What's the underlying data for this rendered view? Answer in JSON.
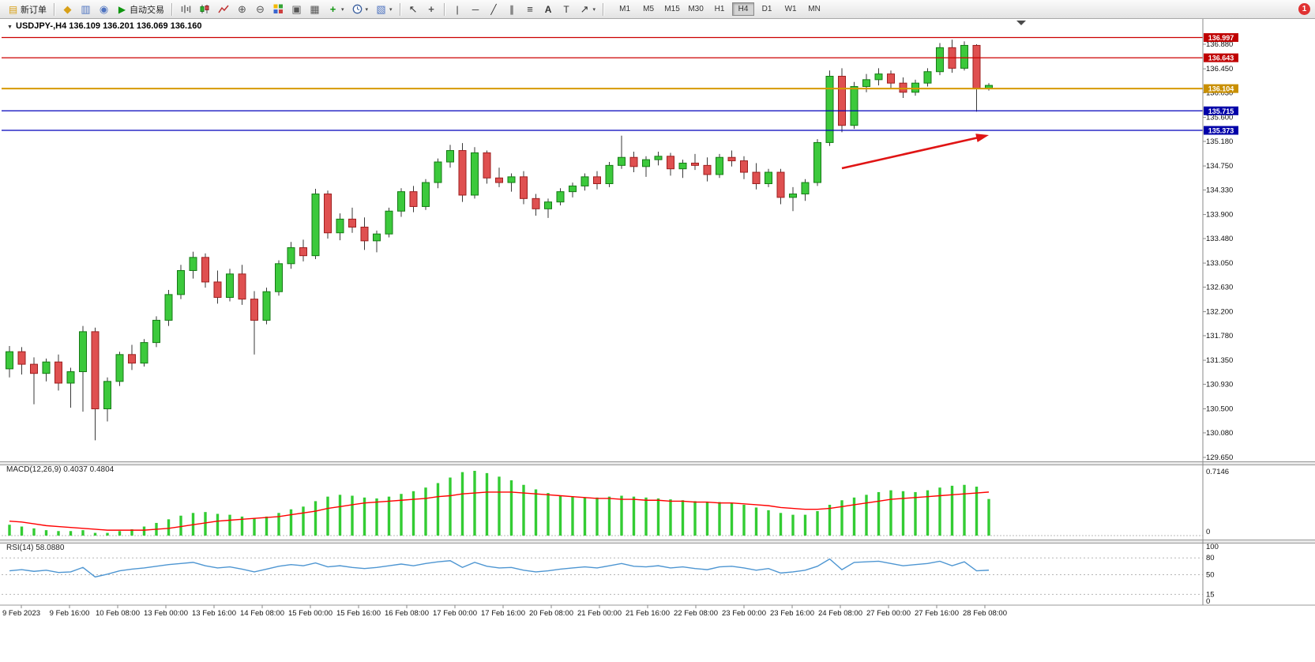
{
  "window": {
    "notification_badge": "1"
  },
  "toolbar": {
    "new_order": {
      "label": "新订单"
    },
    "autotrading": {
      "label": "自动交易"
    },
    "panel_icons": [
      {
        "name": "market-watch-icon",
        "glyph": "◆"
      },
      {
        "name": "data-window-icon",
        "glyph": "▥"
      },
      {
        "name": "navigator-icon",
        "glyph": "◉"
      }
    ],
    "tool_glyphs": {
      "new_order": "▤",
      "autotrading": "▶",
      "zoom_in": "⊕",
      "zoom_out": "⊖",
      "arrange": "▣",
      "cascade": "▦",
      "indicators": "+",
      "templates": "▧",
      "cursor": "↖",
      "crosshair": "+",
      "vline": "|",
      "hline": "─",
      "trendline": "╱",
      "channel": "∥",
      "fibonacci": "≡",
      "text": "A",
      "label": "T",
      "arrows": "↗",
      "caret": "▾"
    },
    "timeframes": [
      "M1",
      "M5",
      "M15",
      "M30",
      "H1",
      "H4",
      "D1",
      "W1",
      "MN"
    ],
    "active_timeframe": "H4"
  },
  "chart": {
    "title": "USDJPY-,H4  136.109 136.201 136.069 136.160",
    "macd_label": "MACD(12,26,9) 0.4037 0.4804",
    "rsi_label": "RSI(14) 58.0880",
    "dropdown_icon": "▼"
  },
  "colors": {
    "bull": "#3cc93c",
    "bull_edge": "#157a15",
    "bear": "#df5050",
    "bear_edge": "#9e1f1f",
    "wick": "#3a3a3a",
    "macd_bar": "#33cc33",
    "macd_signal": "#ff0000",
    "rsi_line": "#4e96d2",
    "line_red": "#cc0000",
    "line_blue": "#0000bb",
    "line_gold": "#d69a00",
    "tag_red": "#c00000",
    "tag_blue": "#0000a8",
    "tag_gold": "#c98f00",
    "arrow": "#e01414"
  },
  "chart_data": [
    {
      "type": "candlestick",
      "symbol": "USDJPY-",
      "timeframe": "H4",
      "title": "USDJPY-,H4",
      "current_ohlc": {
        "open": 136.109,
        "high": 136.201,
        "low": 136.069,
        "close": 136.16
      },
      "ylim": [
        129.45,
        137.1
      ],
      "grid": false,
      "y_tick_labels": [
        "136.880",
        "136.450",
        "136.030",
        "135.600",
        "135.180",
        "134.750",
        "134.330",
        "133.900",
        "133.480",
        "133.050",
        "132.630",
        "132.200",
        "131.780",
        "131.350",
        "130.930",
        "130.500",
        "130.080",
        "129.650"
      ],
      "y_tick_values": [
        136.88,
        136.45,
        136.03,
        135.6,
        135.18,
        134.75,
        134.33,
        133.9,
        133.48,
        133.05,
        132.63,
        132.2,
        131.78,
        131.35,
        130.93,
        130.5,
        130.08,
        129.65
      ],
      "x_ticks": [
        "9 Feb 2023",
        "9 Feb 16:00",
        "10 Feb 08:00",
        "13 Feb 00:00",
        "13 Feb 16:00",
        "14 Feb 08:00",
        "15 Feb 00:00",
        "15 Feb 16:00",
        "16 Feb 08:00",
        "17 Feb 00:00",
        "17 Feb 16:00",
        "20 Feb 08:00",
        "21 Feb 00:00",
        "21 Feb 16:00",
        "22 Feb 08:00",
        "23 Feb 00:00",
        "23 Feb 16:00",
        "24 Feb 08:00",
        "27 Feb 00:00",
        "27 Feb 16:00",
        "28 Feb 08:00"
      ],
      "hlines": [
        {
          "price": 136.997,
          "label": "136.997",
          "color": "red"
        },
        {
          "price": 136.643,
          "label": "136.643",
          "color": "red"
        },
        {
          "price": 136.104,
          "label": "136.104",
          "color": "gold"
        },
        {
          "price": 135.715,
          "label": "135.715",
          "color": "blue"
        },
        {
          "price": 135.373,
          "label": "135.373",
          "color": "blue"
        }
      ],
      "arrow": {
        "from_index": 68,
        "from_price": 134.71,
        "to_index": 79.6,
        "to_price": 135.27
      },
      "ohlc": [
        [
          131.2,
          131.6,
          131.05,
          131.5
        ],
        [
          131.5,
          131.58,
          131.1,
          131.28
        ],
        [
          131.28,
          131.4,
          130.58,
          131.12
        ],
        [
          131.12,
          131.38,
          130.98,
          131.32
        ],
        [
          131.32,
          131.45,
          130.82,
          130.95
        ],
        [
          130.95,
          131.22,
          130.52,
          131.15
        ],
        [
          131.15,
          131.95,
          130.45,
          131.85
        ],
        [
          131.85,
          131.92,
          129.95,
          130.5
        ],
        [
          130.5,
          131.05,
          130.28,
          130.98
        ],
        [
          130.98,
          131.5,
          130.9,
          131.45
        ],
        [
          131.45,
          131.62,
          131.18,
          131.3
        ],
        [
          131.3,
          131.72,
          131.24,
          131.66
        ],
        [
          131.66,
          132.12,
          131.58,
          132.05
        ],
        [
          132.05,
          132.58,
          131.95,
          132.5
        ],
        [
          132.5,
          133.02,
          132.42,
          132.92
        ],
        [
          132.92,
          133.25,
          132.78,
          133.15
        ],
        [
          133.15,
          133.22,
          132.62,
          132.72
        ],
        [
          132.72,
          132.92,
          132.34,
          132.45
        ],
        [
          132.45,
          132.95,
          132.38,
          132.86
        ],
        [
          132.86,
          133.02,
          132.32,
          132.42
        ],
        [
          132.42,
          132.56,
          131.45,
          132.05
        ],
        [
          132.05,
          132.62,
          131.98,
          132.55
        ],
        [
          132.55,
          133.1,
          132.48,
          133.04
        ],
        [
          133.04,
          133.42,
          132.95,
          133.32
        ],
        [
          133.32,
          133.46,
          133.08,
          133.18
        ],
        [
          133.18,
          134.35,
          133.12,
          134.26
        ],
        [
          134.26,
          134.32,
          133.48,
          133.58
        ],
        [
          133.58,
          133.92,
          133.45,
          133.82
        ],
        [
          133.82,
          134.02,
          133.58,
          133.68
        ],
        [
          133.68,
          133.85,
          133.28,
          133.44
        ],
        [
          133.44,
          133.62,
          133.24,
          133.56
        ],
        [
          133.56,
          134.02,
          133.5,
          133.96
        ],
        [
          133.96,
          134.36,
          133.86,
          134.3
        ],
        [
          134.3,
          134.4,
          133.94,
          134.04
        ],
        [
          134.04,
          134.52,
          133.98,
          134.46
        ],
        [
          134.46,
          134.88,
          134.36,
          134.82
        ],
        [
          134.82,
          135.12,
          134.72,
          135.02
        ],
        [
          135.02,
          135.15,
          134.12,
          134.24
        ],
        [
          134.24,
          135.08,
          134.18,
          134.98
        ],
        [
          134.98,
          135.02,
          134.44,
          134.54
        ],
        [
          134.54,
          134.72,
          134.38,
          134.46
        ],
        [
          134.46,
          134.62,
          134.3,
          134.56
        ],
        [
          134.56,
          134.66,
          134.08,
          134.18
        ],
        [
          134.18,
          134.26,
          133.88,
          134.0
        ],
        [
          134.0,
          134.18,
          133.84,
          134.12
        ],
        [
          134.12,
          134.36,
          134.06,
          134.3
        ],
        [
          134.3,
          134.46,
          134.2,
          134.4
        ],
        [
          134.4,
          134.62,
          134.32,
          134.56
        ],
        [
          134.56,
          134.66,
          134.34,
          134.44
        ],
        [
          134.44,
          134.82,
          134.38,
          134.76
        ],
        [
          134.76,
          135.28,
          134.7,
          134.9
        ],
        [
          134.9,
          135.0,
          134.64,
          134.74
        ],
        [
          134.74,
          134.92,
          134.56,
          134.86
        ],
        [
          134.86,
          135.0,
          134.76,
          134.92
        ],
        [
          134.92,
          134.98,
          134.58,
          134.7
        ],
        [
          134.7,
          134.86,
          134.54,
          134.8
        ],
        [
          134.8,
          134.96,
          134.68,
          134.76
        ],
        [
          134.76,
          134.9,
          134.48,
          134.6
        ],
        [
          134.6,
          134.96,
          134.54,
          134.9
        ],
        [
          134.9,
          135.02,
          134.74,
          134.84
        ],
        [
          134.84,
          134.92,
          134.52,
          134.64
        ],
        [
          134.64,
          134.8,
          134.34,
          134.44
        ],
        [
          134.44,
          134.7,
          134.38,
          134.64
        ],
        [
          134.64,
          134.7,
          134.08,
          134.2
        ],
        [
          134.2,
          134.38,
          133.96,
          134.26
        ],
        [
          134.26,
          134.52,
          134.14,
          134.46
        ],
        [
          134.46,
          135.22,
          134.4,
          135.16
        ],
        [
          135.16,
          136.42,
          135.1,
          136.32
        ],
        [
          136.32,
          136.46,
          135.34,
          135.46
        ],
        [
          135.46,
          136.22,
          135.4,
          136.14
        ],
        [
          136.14,
          136.36,
          136.04,
          136.26
        ],
        [
          136.26,
          136.46,
          136.16,
          136.36
        ],
        [
          136.36,
          136.42,
          136.1,
          136.2
        ],
        [
          136.2,
          136.3,
          135.94,
          136.04
        ],
        [
          136.04,
          136.26,
          135.98,
          136.2
        ],
        [
          136.2,
          136.46,
          136.14,
          136.4
        ],
        [
          136.4,
          136.9,
          136.34,
          136.82
        ],
        [
          136.82,
          136.96,
          136.38,
          136.46
        ],
        [
          136.46,
          136.93,
          136.42,
          136.86
        ],
        [
          136.86,
          136.88,
          135.7,
          136.11
        ],
        [
          136.11,
          136.2,
          136.07,
          136.16
        ]
      ]
    },
    {
      "type": "bar",
      "name": "MACD(12,26,9)",
      "current_main": 0.4037,
      "current_signal": 0.4804,
      "ylim": [
        0,
        0.7146
      ],
      "y_ticks": [
        "0.7146",
        "0"
      ],
      "values": [
        0.12,
        0.1,
        0.08,
        0.06,
        0.05,
        0.05,
        0.06,
        0.03,
        0.03,
        0.05,
        0.07,
        0.1,
        0.14,
        0.18,
        0.22,
        0.25,
        0.26,
        0.24,
        0.23,
        0.21,
        0.19,
        0.21,
        0.25,
        0.29,
        0.32,
        0.38,
        0.43,
        0.45,
        0.44,
        0.42,
        0.41,
        0.43,
        0.46,
        0.49,
        0.53,
        0.58,
        0.64,
        0.7,
        0.7146,
        0.69,
        0.65,
        0.61,
        0.56,
        0.51,
        0.47,
        0.44,
        0.43,
        0.42,
        0.42,
        0.43,
        0.44,
        0.43,
        0.42,
        0.41,
        0.4,
        0.39,
        0.38,
        0.37,
        0.37,
        0.36,
        0.34,
        0.31,
        0.28,
        0.25,
        0.23,
        0.23,
        0.27,
        0.34,
        0.39,
        0.42,
        0.45,
        0.48,
        0.5,
        0.49,
        0.48,
        0.5,
        0.53,
        0.55,
        0.56,
        0.54,
        0.4037
      ],
      "signal": [
        0.16,
        0.15,
        0.13,
        0.11,
        0.1,
        0.09,
        0.08,
        0.07,
        0.06,
        0.06,
        0.06,
        0.06,
        0.07,
        0.08,
        0.1,
        0.12,
        0.14,
        0.16,
        0.17,
        0.18,
        0.19,
        0.2,
        0.21,
        0.23,
        0.25,
        0.27,
        0.3,
        0.32,
        0.34,
        0.36,
        0.37,
        0.38,
        0.39,
        0.4,
        0.41,
        0.43,
        0.44,
        0.46,
        0.47,
        0.48,
        0.48,
        0.48,
        0.47,
        0.46,
        0.45,
        0.44,
        0.43,
        0.42,
        0.41,
        0.41,
        0.4,
        0.4,
        0.39,
        0.39,
        0.38,
        0.38,
        0.37,
        0.37,
        0.36,
        0.36,
        0.35,
        0.34,
        0.33,
        0.31,
        0.3,
        0.29,
        0.29,
        0.3,
        0.32,
        0.34,
        0.36,
        0.38,
        0.4,
        0.41,
        0.42,
        0.43,
        0.44,
        0.45,
        0.46,
        0.47,
        0.4804
      ]
    },
    {
      "type": "line",
      "name": "RSI(14)",
      "current": 58.088,
      "ylim": [
        0,
        100
      ],
      "levels": [
        80,
        50,
        15
      ],
      "y_ticks": [
        "100",
        "80",
        "50",
        "15",
        "0"
      ],
      "y_tick_values": [
        100,
        80,
        50,
        15,
        0
      ],
      "values": [
        57,
        59,
        56,
        58,
        54,
        55,
        63,
        46,
        51,
        57,
        60,
        62,
        65,
        68,
        70,
        72,
        66,
        62,
        64,
        60,
        55,
        60,
        65,
        68,
        66,
        71,
        64,
        66,
        63,
        61,
        63,
        66,
        69,
        66,
        70,
        73,
        75,
        63,
        72,
        65,
        62,
        63,
        58,
        55,
        57,
        60,
        62,
        64,
        62,
        66,
        70,
        65,
        64,
        66,
        62,
        64,
        61,
        59,
        64,
        65,
        62,
        58,
        61,
        53,
        55,
        58,
        65,
        78,
        59,
        72,
        73,
        74,
        70,
        66,
        68,
        70,
        74,
        66,
        73,
        57,
        58.09
      ]
    }
  ]
}
